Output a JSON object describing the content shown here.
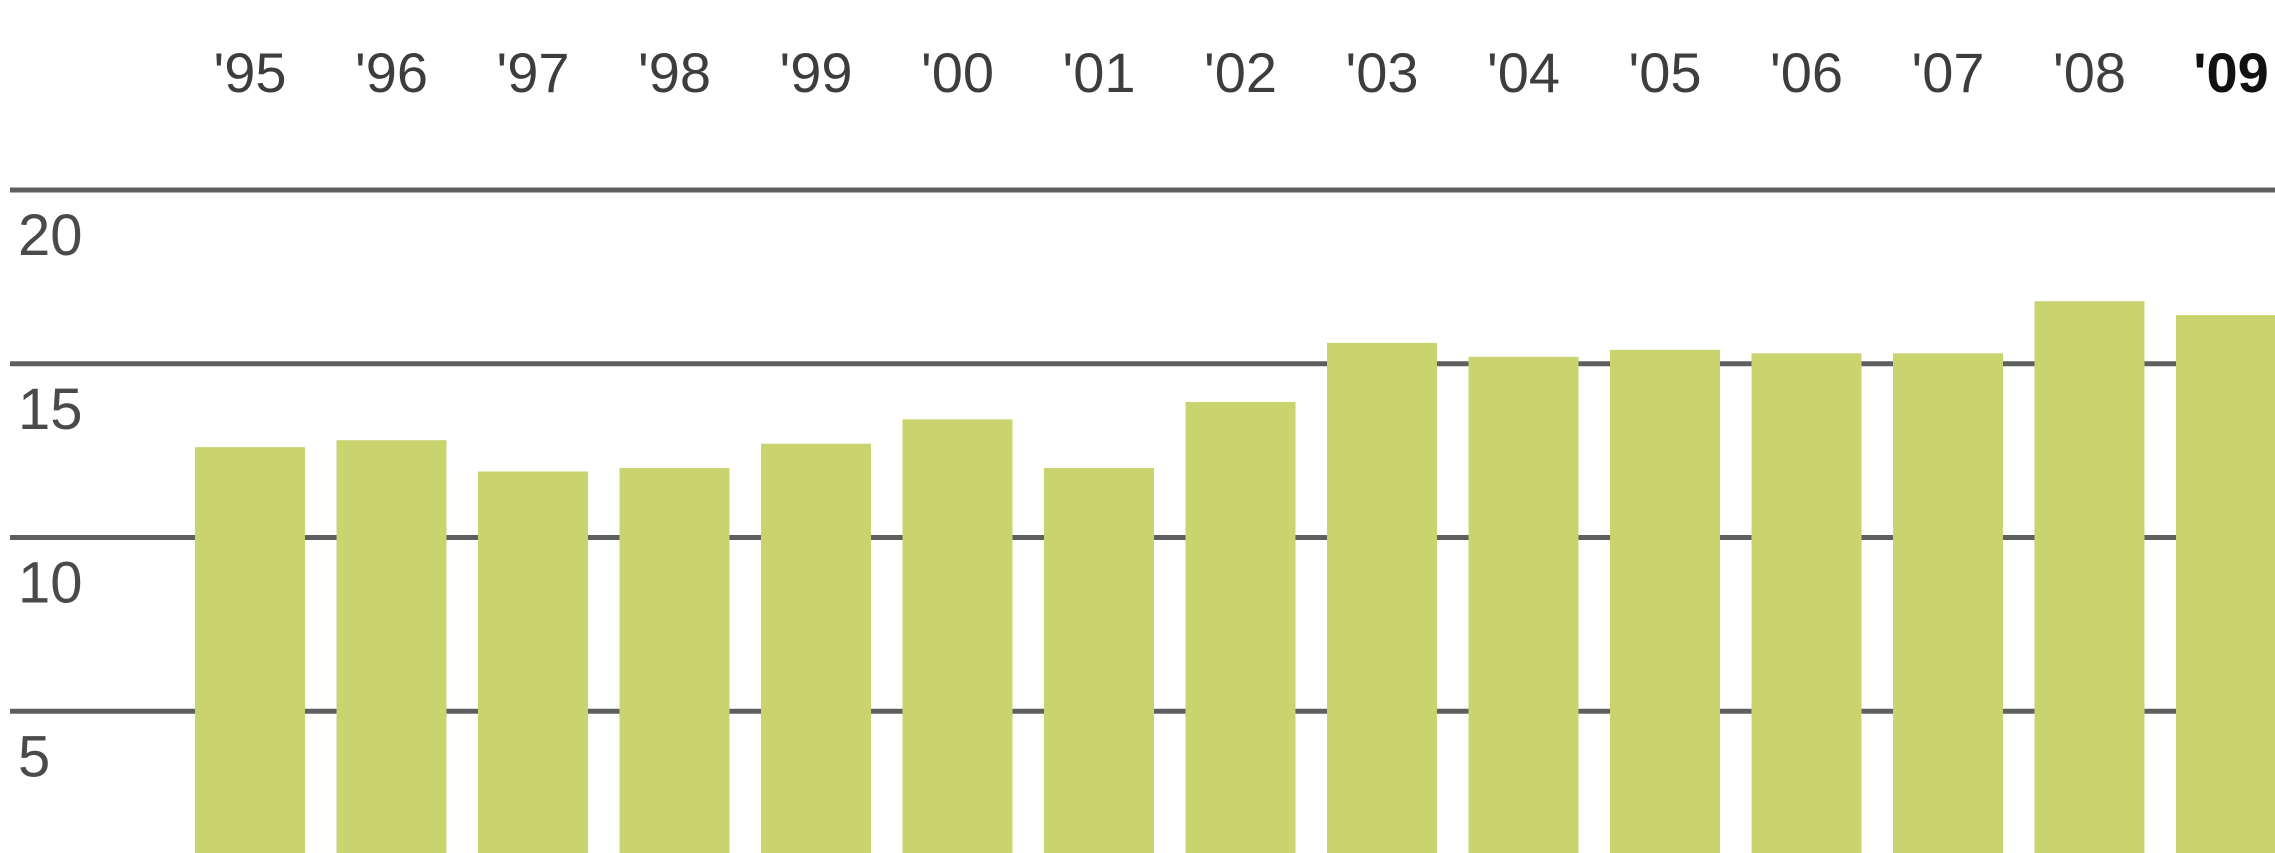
{
  "chart_data": {
    "type": "bar",
    "categories": [
      "'95",
      "'96",
      "'97",
      "'98",
      "'99",
      "'00",
      "'01",
      "'02",
      "'03",
      "'04",
      "'05",
      "'06",
      "'07",
      "'08",
      "'09"
    ],
    "values": [
      12.6,
      12.8,
      11.9,
      12.0,
      12.7,
      13.4,
      12.0,
      13.9,
      15.6,
      15.2,
      15.4,
      15.3,
      15.3,
      16.8,
      16.4
    ],
    "title": "",
    "xlabel": "",
    "ylabel": "",
    "ylim": [
      0,
      20
    ],
    "yticks": [
      "20",
      "15",
      "10",
      "5"
    ],
    "highlight_category": "'09",
    "grid": true,
    "colors": {
      "bar": "#c9d46f",
      "grid": "#4e4e4e",
      "tick": "#4a4a4a",
      "highlight_label": "#111111"
    }
  }
}
